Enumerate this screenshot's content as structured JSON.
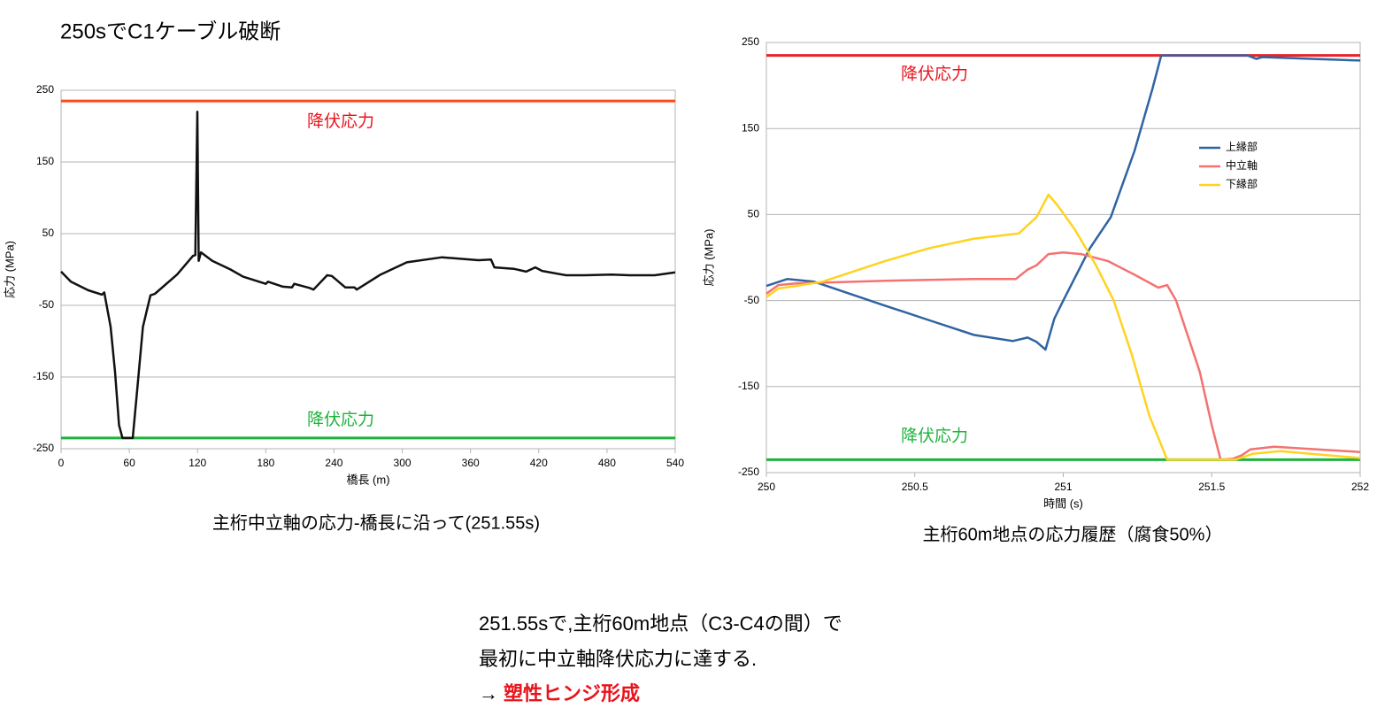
{
  "title": "250sでC1ケーブル破断",
  "chart_data": [
    {
      "type": "line",
      "caption": "主桁中立軸の応力-橋長に沿って(251.55s)",
      "xlabel": "橋長 (m)",
      "ylabel": "応力 (MPa)",
      "xlim": [
        0,
        540
      ],
      "xticks": [
        0,
        60,
        120,
        180,
        240,
        300,
        360,
        420,
        480,
        540
      ],
      "ylim": [
        -250,
        250
      ],
      "yticks": [
        -250,
        -150,
        -50,
        50,
        150,
        250
      ],
      "grid": true,
      "reference_lines": [
        {
          "value": 235,
          "label": "降伏応力",
          "color": "#ff4a1c",
          "label_color": "#e8141c"
        },
        {
          "value": -235,
          "label": "降伏応力",
          "color": "#1db33c",
          "label_color": "#1db33c"
        }
      ],
      "series": [
        {
          "color": "#111111",
          "x": [
            0,
            8.6,
            24,
            36,
            38,
            43.6,
            47.5,
            51,
            54,
            63,
            67,
            72,
            78.6,
            82.5,
            102,
            116,
            118,
            119.8,
            121,
            123,
            133,
            149,
            160,
            168,
            180,
            182,
            195,
            203,
            205,
            219,
            222,
            234,
            238,
            250,
            258,
            260,
            281,
            304,
            335,
            367,
            378,
            381,
            398,
            409,
            417,
            423,
            444,
            460,
            484,
            500,
            522,
            540
          ],
          "values": [
            -3,
            -17,
            -29,
            -35,
            -32,
            -80,
            -143,
            -217,
            -235,
            -235,
            -167,
            -80,
            -36,
            -34,
            -7,
            19,
            20,
            220,
            12,
            24,
            12,
            0,
            -10,
            -14,
            -20,
            -17,
            -24,
            -25,
            -20,
            -26,
            -28,
            -8,
            -9,
            -25,
            -25,
            -28,
            -7,
            10,
            17,
            13,
            14,
            3,
            1,
            -3,
            3,
            -2,
            -8,
            -8,
            -7,
            -8,
            -8,
            -4
          ]
        }
      ]
    },
    {
      "type": "line",
      "caption": "主桁60m地点の応力履歴（腐食50%）",
      "xlabel": "時間 (s)",
      "ylabel": "応力 (MPa)",
      "xlim": [
        250,
        252
      ],
      "xticks": [
        250,
        250.5,
        251,
        251.5,
        252
      ],
      "ylim": [
        -250,
        250
      ],
      "yticks": [
        -250,
        -150,
        -50,
        50,
        150,
        250
      ],
      "grid": true,
      "legend": "right",
      "reference_lines": [
        {
          "value": 235,
          "label": "降伏応力",
          "color": "#e8232a",
          "label_color": "#e8141c"
        },
        {
          "value": -235,
          "label": "降伏応力",
          "color": "#1db33c",
          "label_color": "#1db33c"
        }
      ],
      "series": [
        {
          "name": "上縁部",
          "color": "#2f64a3",
          "x": [
            250,
            250.07,
            250.16,
            250.4,
            250.55,
            250.7,
            250.83,
            250.88,
            250.91,
            250.94,
            250.97,
            251,
            251.09,
            251.16,
            251.24,
            251.3,
            251.33,
            251.62,
            251.65,
            251.67,
            252
          ],
          "values": [
            -33,
            -25,
            -28,
            -56,
            -73,
            -90,
            -97,
            -93,
            -98,
            -107,
            -71,
            -50,
            11,
            47,
            124,
            196,
            235,
            235,
            231,
            233,
            229
          ]
        },
        {
          "name": "中立軸",
          "color": "#f47272",
          "x": [
            250,
            250.04,
            250.1,
            250.4,
            250.7,
            250.84,
            250.88,
            250.91,
            250.95,
            251,
            251.06,
            251.15,
            251.24,
            251.32,
            251.35,
            251.38,
            251.46,
            251.5,
            251.53,
            251.57,
            251.6,
            251.63,
            251.71,
            252
          ],
          "values": [
            -42,
            -32,
            -30,
            -27,
            -25,
            -25,
            -14,
            -9,
            4,
            6,
            4,
            -4,
            -20,
            -35,
            -32,
            -50,
            -133,
            -195,
            -235,
            -234,
            -230,
            -223,
            -220,
            -226
          ]
        },
        {
          "name": "下縁部",
          "color": "#ffd320",
          "x": [
            250,
            250.04,
            250.1,
            250.19,
            250.4,
            250.55,
            250.7,
            250.85,
            250.91,
            250.95,
            250.98,
            251.04,
            251.11,
            251.17,
            251.23,
            251.29,
            251.35,
            251.58,
            251.64,
            251.73,
            252
          ],
          "values": [
            -46,
            -36,
            -33,
            -28,
            -4,
            11,
            22,
            28,
            47,
            73,
            61,
            32,
            -9,
            -50,
            -112,
            -184,
            -235,
            -235,
            -228,
            -225,
            -233
          ]
        }
      ]
    }
  ],
  "note": {
    "lines": [
      "251.55sで,主桁60m地点（C3-C4の間）で",
      "最初に中立軸降伏応力に達する."
    ],
    "arrow": "→",
    "emphasis": "塑性ヒンジ形成"
  }
}
